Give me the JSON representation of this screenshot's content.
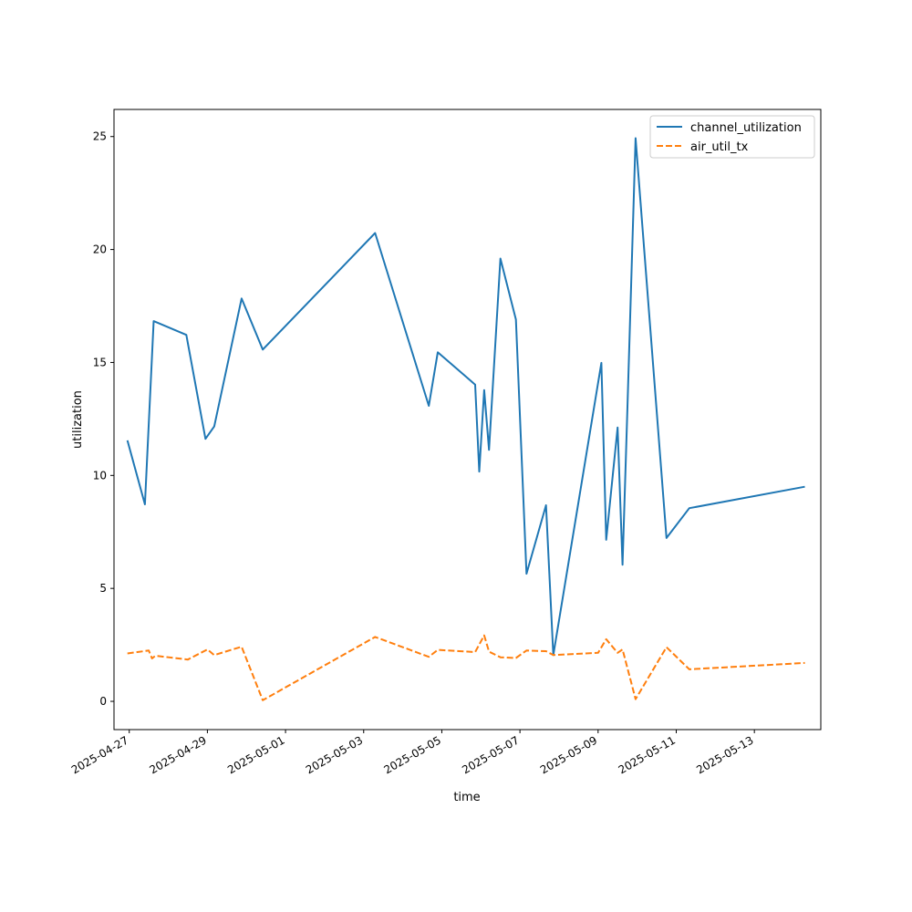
{
  "chart_data": {
    "type": "line",
    "title": "",
    "xlabel": "time",
    "ylabel": "utilization",
    "x_ticks": [
      "2025-04-27",
      "2025-04-29",
      "2025-05-01",
      "2025-05-03",
      "2025-05-05",
      "2025-05-07",
      "2025-05-09",
      "2025-05-11",
      "2025-05-13"
    ],
    "y_ticks": [
      0,
      5,
      10,
      15,
      20,
      25
    ],
    "xlim": [
      "2025-04-26T14:38",
      "2025-05-14T16:48"
    ],
    "ylim": [
      -1.25,
      26.2
    ],
    "grid": false,
    "legend_position": "top-right",
    "series": [
      {
        "name": "channel_utilization",
        "color": "#1f77b4",
        "style": "solid",
        "points": [
          [
            "2025-04-26T22:53",
            11.55
          ],
          [
            "2025-04-27T09:36",
            8.72
          ],
          [
            "2025-04-27T15:00",
            16.83
          ],
          [
            "2025-04-28T11:05",
            16.22
          ],
          [
            "2025-04-28T22:48",
            11.62
          ],
          [
            "2025-04-29T04:12",
            12.17
          ],
          [
            "2025-04-29T21:00",
            17.83
          ],
          [
            "2025-04-30T10:00",
            15.57
          ],
          [
            "2025-05-03T07:00",
            20.73
          ],
          [
            "2025-05-04T16:00",
            13.08
          ],
          [
            "2025-05-04T21:30",
            15.45
          ],
          [
            "2025-05-05T20:30",
            14.02
          ],
          [
            "2025-05-05T23:00",
            10.17
          ],
          [
            "2025-05-06T02:00",
            13.78
          ],
          [
            "2025-05-06T05:00",
            11.13
          ],
          [
            "2025-05-06T12:00",
            19.6
          ],
          [
            "2025-05-06T21:30",
            16.9
          ],
          [
            "2025-05-07T04:00",
            5.65
          ],
          [
            "2025-05-07T16:00",
            8.68
          ],
          [
            "2025-05-07T20:30",
            2.05
          ],
          [
            "2025-05-09T02:00",
            14.98
          ],
          [
            "2025-05-09T05:00",
            7.15
          ],
          [
            "2025-05-09T12:00",
            12.12
          ],
          [
            "2025-05-09T15:00",
            6.05
          ],
          [
            "2025-05-09T18:00",
            12.9
          ],
          [
            "2025-05-09T23:00",
            24.93
          ],
          [
            "2025-05-10T18:00",
            7.23
          ],
          [
            "2025-05-11T08:00",
            8.55
          ],
          [
            "2025-05-14T07:00",
            9.5
          ]
        ]
      },
      {
        "name": "air_util_tx",
        "color": "#ff7f0e",
        "style": "dashed",
        "points": [
          [
            "2025-04-26T22:53",
            2.12
          ],
          [
            "2025-04-27T12:00",
            2.25
          ],
          [
            "2025-04-27T14:00",
            1.9
          ],
          [
            "2025-04-27T16:00",
            2.02
          ],
          [
            "2025-04-28T12:00",
            1.85
          ],
          [
            "2025-04-29T00:00",
            2.3
          ],
          [
            "2025-04-29T04:12",
            2.05
          ],
          [
            "2025-04-29T21:00",
            2.42
          ],
          [
            "2025-04-30T10:00",
            0.05
          ],
          [
            "2025-05-03T07:00",
            2.85
          ],
          [
            "2025-05-04T16:00",
            1.97
          ],
          [
            "2025-05-04T21:30",
            2.28
          ],
          [
            "2025-05-05T20:30",
            2.18
          ],
          [
            "2025-05-06T02:00",
            2.92
          ],
          [
            "2025-05-06T05:00",
            2.2
          ],
          [
            "2025-05-06T12:00",
            1.95
          ],
          [
            "2025-05-06T21:30",
            1.92
          ],
          [
            "2025-05-07T04:00",
            2.25
          ],
          [
            "2025-05-07T16:00",
            2.22
          ],
          [
            "2025-05-07T20:30",
            2.05
          ],
          [
            "2025-05-09T00:00",
            2.15
          ],
          [
            "2025-05-09T05:00",
            2.75
          ],
          [
            "2025-05-09T12:00",
            2.15
          ],
          [
            "2025-05-09T15:00",
            2.3
          ],
          [
            "2025-05-09T23:00",
            0.1
          ],
          [
            "2025-05-10T18:00",
            2.4
          ],
          [
            "2025-05-11T00:00",
            1.98
          ],
          [
            "2025-05-11T08:00",
            1.42
          ],
          [
            "2025-05-14T07:00",
            1.7
          ]
        ]
      }
    ]
  }
}
